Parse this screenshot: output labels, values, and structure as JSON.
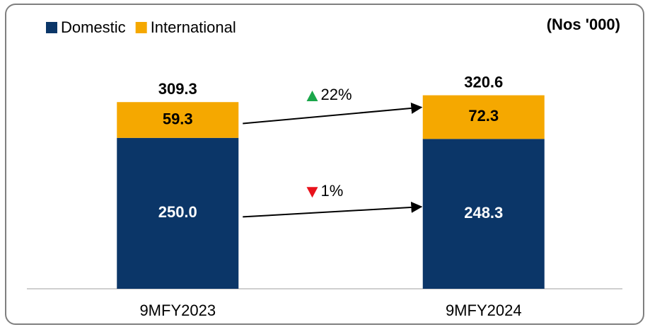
{
  "chart_data": {
    "type": "stacked_bar",
    "unit_label": "(Nos '000)",
    "categories": [
      "9MFY2023",
      "9MFY2024"
    ],
    "series": [
      {
        "name": "Domestic",
        "color": "#0b3668",
        "values": [
          250.0,
          248.3
        ],
        "value_labels": [
          "250.0",
          "248.3"
        ],
        "label_color": "#ffffff"
      },
      {
        "name": "International",
        "color": "#f5a800",
        "values": [
          59.3,
          72.3
        ],
        "value_labels": [
          "59.3",
          "72.3"
        ],
        "label_color": "#000000"
      }
    ],
    "totals": [
      309.3,
      320.6
    ],
    "annotations": [
      {
        "series": 1,
        "text": "22%",
        "direction": "up",
        "color": "#1aa64a"
      },
      {
        "series": 0,
        "text": "1%",
        "direction": "down",
        "color": "#e8121b"
      }
    ],
    "ylim": [
      0,
      360
    ]
  }
}
